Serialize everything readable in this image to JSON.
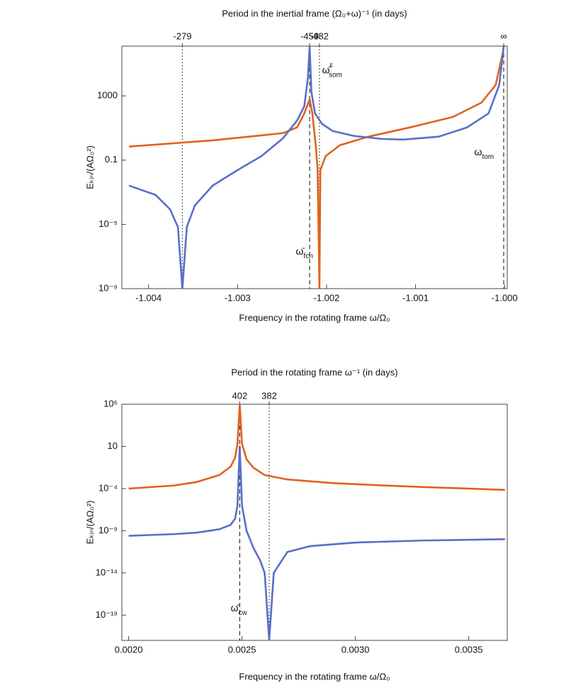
{
  "chart_data": [
    {
      "type": "line",
      "title": "Period in the inertial frame (Ω₀+ω)⁻¹ (in days)",
      "x_label": "Frequency in the rotating frame ω/Ω₀",
      "y_label": "Eₖᵢₙ/(AΩ₀²)",
      "log_y": true,
      "xlim": [
        -1.0043,
        -0.99997
      ],
      "ylim": [
        1e-09,
        1260000
      ],
      "xticks": [
        -1.004,
        -1.003,
        -1.002,
        -1.001,
        {
          "value": -1,
          "label": "-1.000"
        }
      ],
      "yticks": [
        {
          "value": 1e-09,
          "label": "10⁻⁹"
        },
        {
          "value": 1e-05,
          "label": "10⁻⁵"
        },
        0.1,
        1000
      ],
      "markers": [
        {
          "x": -1.00362,
          "label": "-279",
          "style": "dotted"
        },
        {
          "x": -1.00219,
          "label": "-459",
          "style": "dashed"
        },
        {
          "x": -1.00208,
          "label": "-482",
          "style": "dotted"
        },
        {
          "x": -1.00001,
          "label": "∞",
          "style": "dashed"
        }
      ],
      "annotations": [
        {
          "text": "ω̄",
          "sub": "fcn",
          "x": -1.002346,
          "y": 2e-07
        },
        {
          "text": "ω̄",
          "sub": "som",
          "sup": "ε",
          "x": -1.00205,
          "y": 37000
        },
        {
          "text": "ω",
          "sub": "tom",
          "x": -1.00034,
          "y": 0.3
        }
      ],
      "series": [
        {
          "color": "#e0621c",
          "x": [
            -1.00422,
            -1.00328,
            -1.00249,
            -1.00233,
            -1.00225,
            -1.00219,
            -1.00216,
            -1.00212,
            -1.0021,
            -1.00208,
            -1.00207,
            -1.00201,
            -1.00185,
            -1.00153,
            -1.00106,
            -1.00058,
            -1.00026,
            -1.0001,
            -1.00002,
            -1.00001
          ],
          "values": [
            0.7,
            1.7,
            4.8,
            11,
            81,
            630,
            81,
            0.7,
            0.024,
            1e-09,
            0.024,
            0.18,
            0.85,
            2.9,
            11,
            49,
            380,
            4800,
            470000,
            1200000
          ]
        },
        {
          "color": "#5a6ec8",
          "x": [
            -1.00422,
            -1.00392,
            -1.00376,
            -1.00367,
            -1.00362,
            -1.00357,
            -1.00348,
            -1.00328,
            -1.003,
            -1.00273,
            -1.00249,
            -1.00233,
            -1.00225,
            -1.00221,
            -1.00219,
            -1.00217,
            -1.00213,
            -1.00205,
            -1.00193,
            -1.00169,
            -1.00138,
            -1.00114,
            -1.00074,
            -1.00042,
            -1.00018,
            -1.00006,
            -1.00001
          ],
          "values": [
            0.0026,
            0.00068,
            8.9e-05,
            6.9e-06,
            1e-09,
            6.9e-06,
            0.00015,
            0.0026,
            0.024,
            0.18,
            2.3,
            30,
            230,
            13000,
            1200000,
            1700,
            81,
            18,
            6.5,
            3.2,
            2.1,
            1.9,
            2.9,
            11,
            81,
            4800,
            1200000
          ]
        }
      ]
    },
    {
      "type": "line",
      "title": "Period in the rotating frame ω⁻¹ (in days)",
      "x_label": "Frequency in the rotating frame ω/Ω₀",
      "y_label": "Eₖᵢₙ/(AΩ₀²)",
      "log_y": true,
      "xlim": [
        0.00197,
        0.00367
      ],
      "ylim": [
        1e-22,
        1000000
      ],
      "xticks": [
        {
          "value": 0.002,
          "label": "0.0020"
        },
        0.0025,
        {
          "value": 0.003,
          "label": "0.0030"
        },
        0.0035
      ],
      "yticks": [
        {
          "value": 1e-19,
          "label": "10⁻¹⁹"
        },
        {
          "value": 1e-14,
          "label": "10⁻¹⁴"
        },
        {
          "value": 1e-09,
          "label": "10⁻⁹"
        },
        {
          "value": 0.0001,
          "label": "10⁻⁴"
        },
        10,
        {
          "value": 1000000,
          "label": "10⁶"
        }
      ],
      "markers": [
        {
          "x": 0.00249,
          "label": "402",
          "style": "dashed"
        },
        {
          "x": 0.00262,
          "label": "382",
          "style": "dotted"
        }
      ],
      "annotations": [
        {
          "text": "ω̄",
          "sub": "cw",
          "x": 0.00245,
          "y": 6e-19
        }
      ],
      "series": [
        {
          "color": "#e0621c",
          "x": [
            0.002,
            0.0022,
            0.0023,
            0.0024,
            0.00245,
            0.00247,
            0.00248,
            0.00249,
            0.0025,
            0.00252,
            0.00255,
            0.0026,
            0.0027,
            0.0029,
            0.0031,
            0.0033,
            0.0035,
            0.00366
          ],
          "values": [
            0.0001,
            0.00023,
            0.0006,
            0.004,
            0.04,
            0.5,
            20,
            1000000,
            20,
            0.3,
            0.03,
            0.004,
            0.0012,
            0.00045,
            0.00025,
            0.00015,
            0.0001,
            7e-05
          ]
        },
        {
          "color": "#5a6ec8",
          "x": [
            0.002,
            0.0022,
            0.0023,
            0.0024,
            0.00245,
            0.00247,
            0.00248,
            0.00249,
            0.0025,
            0.00252,
            0.00255,
            0.00258,
            0.0026,
            0.00262,
            0.00264,
            0.0027,
            0.0028,
            0.003,
            0.0033,
            0.00366
          ],
          "values": [
            2.5e-10,
            4e-10,
            6e-10,
            1.5e-09,
            5e-09,
            3e-08,
            1e-06,
            10,
            1e-06,
            1e-09,
            1e-11,
            3e-13,
            1e-14,
            1e-22,
            1e-14,
            3e-12,
            1.5e-11,
            4e-11,
            7e-11,
            1e-10
          ]
        }
      ]
    }
  ]
}
